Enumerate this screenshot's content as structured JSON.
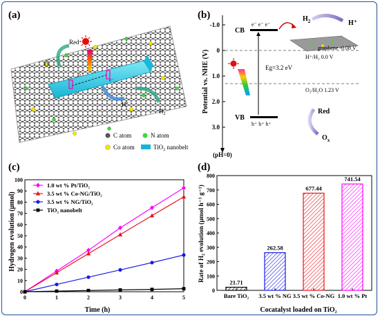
{
  "panel_a": {
    "label": "(a)",
    "species": [
      "Red",
      "O",
      "H",
      "H"
    ],
    "species_subscripts": [
      "x",
      "",
      "+",
      "2"
    ],
    "electron": "e⁻",
    "hole": "h⁺",
    "legend": [
      "C atom",
      "N atom",
      "Co atom",
      "TiO",
      "2",
      " nanobelt"
    ]
  },
  "panel_b": {
    "label": "(b)",
    "y_axis_label": "Potential vs. NHE (V)",
    "ticks": [
      "-1.0",
      "0",
      "1.0",
      "2.0",
      "3.0"
    ],
    "cb": "CB",
    "vb": "VB",
    "electrons": "e⁻ e⁻ e⁻",
    "holes": "h⁺ h⁺ h⁺",
    "eg": "Eg=3.2 eV",
    "h2": "H",
    "h2_sub": "2",
    "hplus": "H⁺",
    "graphene": "graphene -0.08 V",
    "h_level": "H⁺/H₂ 0.0 V",
    "o_level": "O₂/H₂O 1.23 V",
    "red": "Red",
    "ox": "O",
    "ox_sub": "x",
    "ph": "(pH=0)",
    "colors": {
      "bands": "#000000",
      "arrow": "#cc0000"
    }
  },
  "panel_c": {
    "label": "(c)",
    "chart_data": {
      "type": "line",
      "xlabel": "Time (h)",
      "ylabel": "Hydrogen evolution (μmol)",
      "x": [
        0,
        1,
        2,
        3,
        4,
        5
      ],
      "xlim": [
        0,
        5
      ],
      "ylim": [
        0,
        100
      ],
      "x_ticks": [
        "0",
        "1",
        "2",
        "3",
        "4",
        "5"
      ],
      "y_ticks": [
        "0",
        "10",
        "20",
        "30",
        "40",
        "50",
        "60",
        "70",
        "80",
        "90",
        "100"
      ],
      "series": [
        {
          "name": "1.0 wt % Pt/TiO₂",
          "color": "#ff00ff",
          "marker": "diamond",
          "values": [
            0,
            18.5,
            37,
            57,
            75,
            92.7
          ]
        },
        {
          "name": "3.5 wt % Co-NG/TiO₂",
          "color": "#e8141c",
          "marker": "triangle",
          "values": [
            0,
            17,
            34,
            51,
            68,
            84.7
          ]
        },
        {
          "name": "3.5 wt % NG/TiO₂",
          "color": "#1a1ae6",
          "marker": "circle",
          "values": [
            0,
            6.5,
            13,
            19.5,
            26,
            32.8
          ]
        },
        {
          "name": "TiO₂ nanobelt",
          "color": "#000000",
          "marker": "square",
          "values": [
            0,
            0.55,
            1.1,
            1.6,
            2.1,
            2.7
          ]
        }
      ],
      "legend": "top-left"
    }
  },
  "panel_d": {
    "label": "(d)",
    "chart_data": {
      "type": "bar",
      "categories": [
        "Bare TiO₂",
        "3.5 wt % NG",
        "3.5 wt % Co-NG",
        "1.0 wt % Pt"
      ],
      "values": [
        21.71,
        262.58,
        677.44,
        741.54
      ],
      "value_labels": [
        "21.71",
        "262.58",
        "677.44",
        "741.54"
      ],
      "colors": [
        "#000000",
        "#1a1ae6",
        "#e8141c",
        "#ff00ff"
      ],
      "xlabel": "Cocatalyst loaded on TiO₂",
      "ylabel": "Rate of H₂ evolution (μmol h⁻¹ g⁻¹)",
      "ylim": [
        0,
        800
      ],
      "y_ticks": [
        "0",
        "100",
        "200",
        "300",
        "400",
        "500",
        "600",
        "700",
        "800"
      ],
      "hatch": true
    }
  }
}
